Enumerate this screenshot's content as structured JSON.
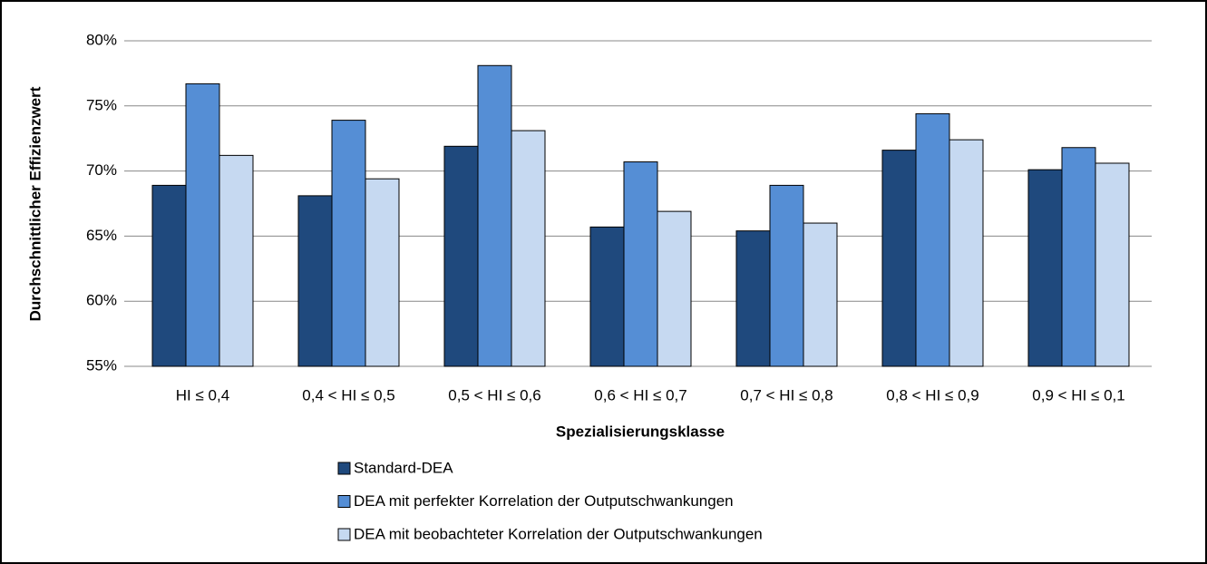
{
  "chart_data": {
    "type": "bar",
    "x_label": "Spezialisierungsklasse",
    "y_label": "Durchschnittlicher Effizienzwert",
    "categories": [
      "HI ≤ 0,4",
      "0,4 <  HI ≤ 0,5",
      "0,5 <  HI ≤ 0,6",
      "0,6 <  HI ≤ 0,7",
      "0,7 <  HI ≤ 0,8",
      "0,8 <  HI ≤ 0,9",
      "0,9 <  HI ≤ 0,1"
    ],
    "series": [
      {
        "name": "Standard-DEA",
        "color": "#1f497d",
        "values": [
          68.9,
          68.1,
          71.9,
          65.7,
          65.4,
          71.6,
          70.1
        ]
      },
      {
        "name": "DEA mit perfekter Korrelation der Outputschwankungen",
        "color": "#558ed5",
        "values": [
          76.7,
          73.9,
          78.1,
          70.7,
          68.9,
          74.4,
          71.8
        ]
      },
      {
        "name": "DEA mit beobachteter Korrelation der Outputschwankungen",
        "color": "#c6d9f1",
        "values": [
          71.2,
          69.4,
          73.1,
          66.9,
          66.0,
          72.4,
          70.6
        ]
      }
    ],
    "ylim": [
      55,
      80
    ],
    "yticks": [
      {
        "value": 55,
        "label": "55%"
      },
      {
        "value": 60,
        "label": "60%"
      },
      {
        "value": 65,
        "label": "65%"
      },
      {
        "value": 70,
        "label": "70%"
      },
      {
        "value": 75,
        "label": "75%"
      },
      {
        "value": 80,
        "label": "80%"
      }
    ],
    "grid": true
  }
}
